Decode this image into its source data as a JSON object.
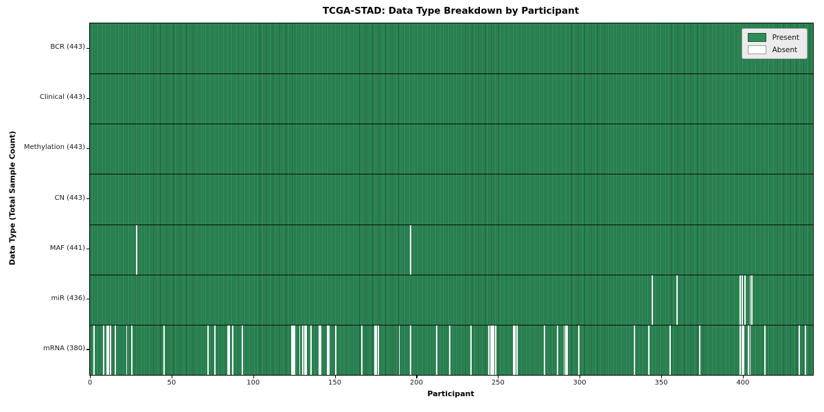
{
  "chart_data": {
    "type": "heatmap",
    "title": "TCGA-STAD: Data Type Breakdown by Participant",
    "xlabel": "Participant",
    "ylabel": "Data Type (Total Sample Count)",
    "n_participants": 443,
    "x_ticks": [
      0,
      50,
      100,
      150,
      200,
      250,
      300,
      350,
      400
    ],
    "legend": [
      {
        "label": "Present",
        "color": "#2f8c58",
        "border": "#1c5837"
      },
      {
        "label": "Absent",
        "color": "#ffffff",
        "border": "#9c9c9c"
      }
    ],
    "colors": {
      "present": "#2f8c58",
      "present_edge": "#1c5837",
      "absent": "#ffffff",
      "separator": "#0a0a0a",
      "legend_bg": "#ebebeb"
    },
    "rows": [
      {
        "data_type": "BCR",
        "label": "BCR (443)",
        "present_count": 443,
        "absent_participants": []
      },
      {
        "data_type": "Clinical",
        "label": "Clinical (443)",
        "present_count": 443,
        "absent_participants": []
      },
      {
        "data_type": "Methylation",
        "label": "Methylation (443)",
        "present_count": 443,
        "absent_participants": []
      },
      {
        "data_type": "CN",
        "label": "CN (443)",
        "present_count": 443,
        "absent_participants": []
      },
      {
        "data_type": "MAF",
        "label": "MAF (441)",
        "present_count": 441,
        "absent_participants": [
          28,
          196
        ]
      },
      {
        "data_type": "miR",
        "label": "miR (436)",
        "present_count": 436,
        "absent_participants": [
          344,
          359,
          398,
          399,
          401,
          404,
          405
        ]
      },
      {
        "data_type": "mRNA",
        "label": "mRNA (380)",
        "present_count": 380,
        "absent_participants": [
          2,
          8,
          10,
          11,
          12,
          15,
          22,
          25,
          45,
          72,
          76,
          84,
          85,
          87,
          93,
          123,
          124,
          125,
          128,
          130,
          131,
          132,
          135,
          140,
          141,
          145,
          146,
          150,
          166,
          174,
          175,
          176,
          189,
          196,
          212,
          220,
          233,
          244,
          245,
          246,
          247,
          248,
          259,
          260,
          261,
          278,
          286,
          290,
          291,
          292,
          299,
          333,
          342,
          355,
          373,
          398,
          399,
          400,
          403,
          404,
          413,
          434,
          438
        ]
      }
    ]
  }
}
